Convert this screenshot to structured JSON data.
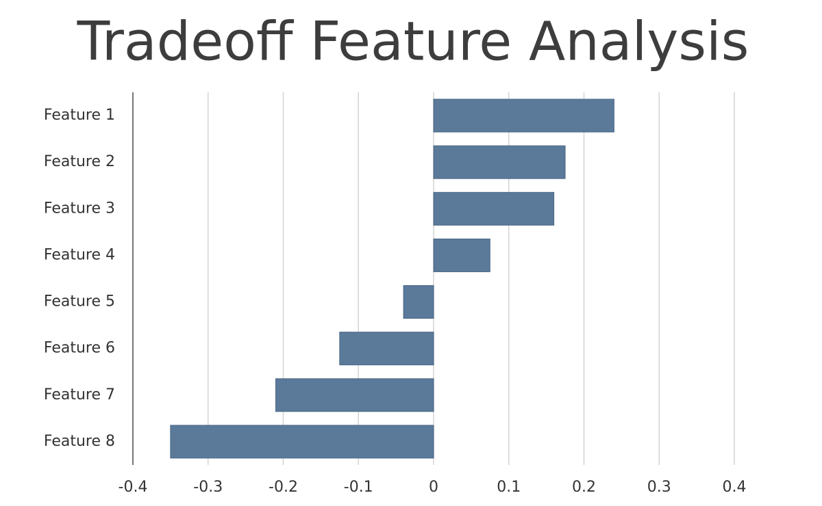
{
  "chart_data": {
    "type": "barh",
    "title": "Tradeoff Feature Analysis",
    "categories": [
      "Feature 1",
      "Feature 2",
      "Feature 3",
      "Feature 4",
      "Feature 5",
      "Feature 6",
      "Feature 7",
      "Feature 8"
    ],
    "values": [
      0.24,
      0.175,
      0.16,
      0.075,
      -0.04,
      -0.125,
      -0.21,
      -0.35
    ],
    "color": "#5b7a9a",
    "xlim": [
      -0.4,
      0.4
    ],
    "xticks": [
      -0.4,
      -0.3,
      -0.2,
      -0.1,
      0,
      0.1,
      0.2,
      0.3,
      0.4
    ],
    "grid": true
  }
}
